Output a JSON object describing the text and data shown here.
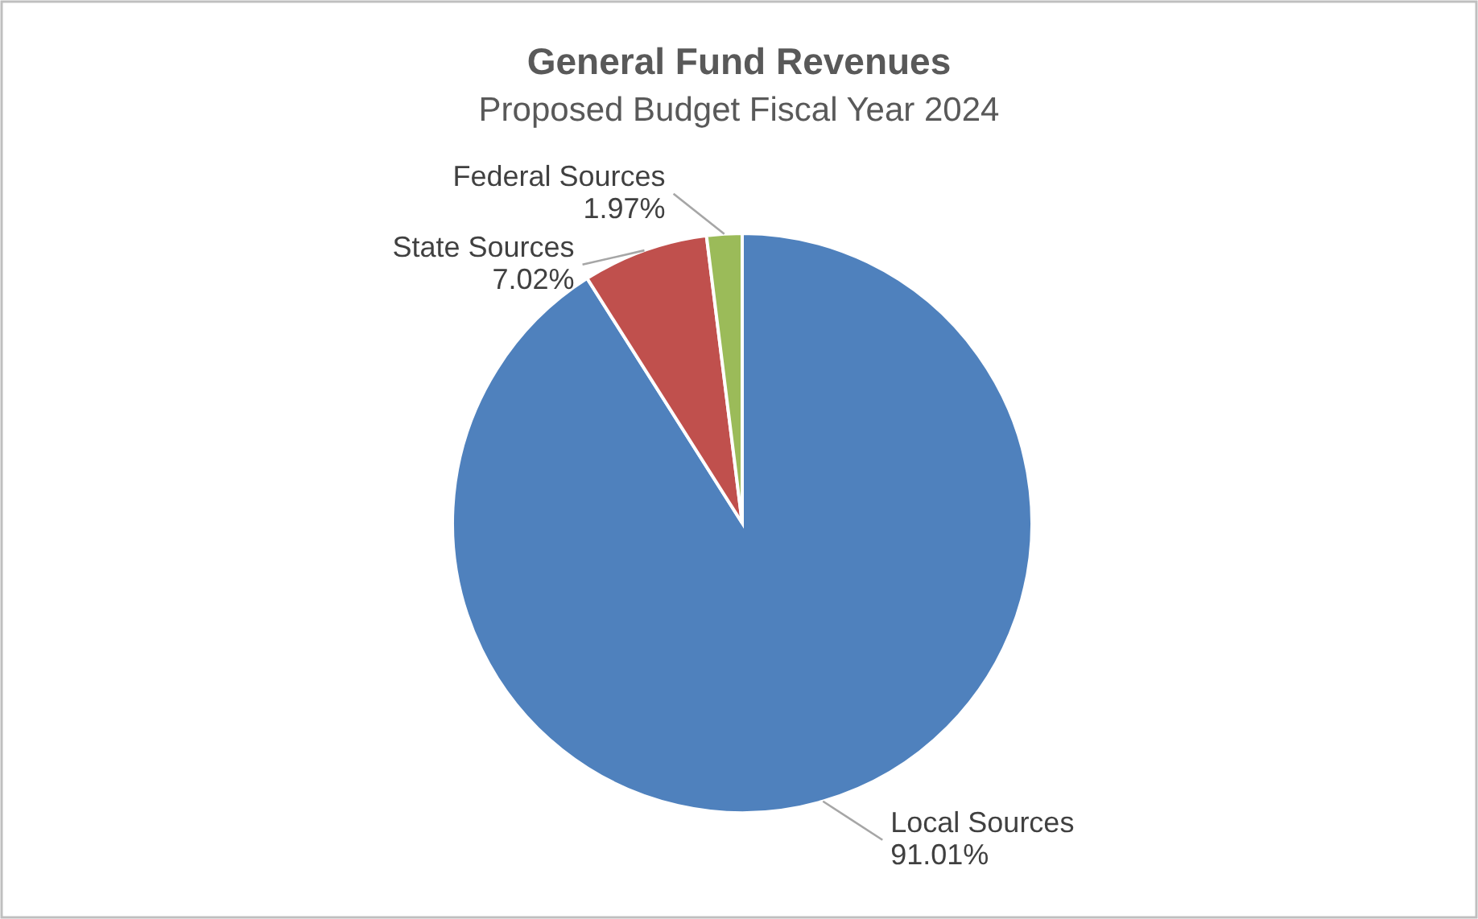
{
  "chart_data": {
    "type": "pie",
    "title": "General Fund Revenues",
    "subtitle": "Proposed Budget Fiscal Year 2024",
    "categories": [
      "Local Sources",
      "State Sources",
      "Federal Sources"
    ],
    "values": [
      91.01,
      7.02,
      1.97
    ],
    "colors": [
      "#4f81bd",
      "#c0504d",
      "#9bbb59"
    ],
    "value_labels": [
      "91.01%",
      "7.02%",
      "1.97%"
    ]
  }
}
